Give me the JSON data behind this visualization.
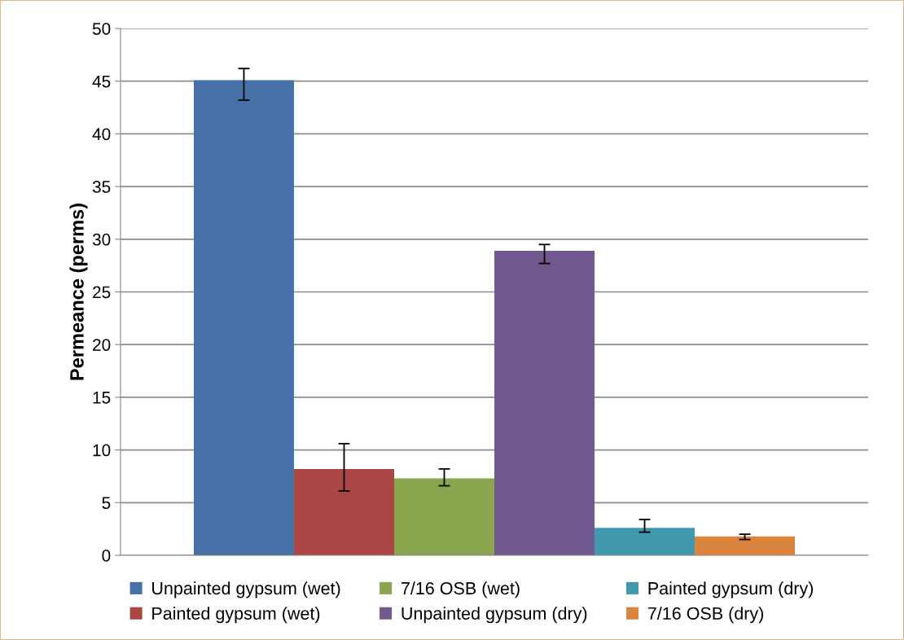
{
  "chart_data": {
    "type": "bar",
    "ylabel": "Permeance (perms)",
    "categories": [
      null
    ],
    "series": [
      {
        "name": "Unpainted gypsum (wet)",
        "color": "#4571a7",
        "values": [
          45.1
        ],
        "errors": [
          [
            43.2,
            46.2
          ]
        ]
      },
      {
        "name": "Painted gypsum (wet)",
        "color": "#aa4644",
        "values": [
          8.2
        ],
        "errors": [
          [
            6.1,
            10.6
          ]
        ]
      },
      {
        "name": "7/16 OSB (wet)",
        "color": "#89a54e",
        "values": [
          7.3
        ],
        "errors": [
          [
            6.6,
            8.2
          ]
        ]
      },
      {
        "name": "Unpainted gypsum (dry)",
        "color": "#71588f",
        "values": [
          28.9
        ],
        "errors": [
          [
            27.7,
            29.5
          ]
        ]
      },
      {
        "name": "Painted gypsum (dry)",
        "color": "#4298af",
        "values": [
          2.6
        ],
        "errors": [
          [
            2.2,
            3.4
          ]
        ]
      },
      {
        "name": "7/16 OSB (dry)",
        "color": "#db843d",
        "values": [
          1.8
        ],
        "errors": [
          [
            1.5,
            2.0
          ]
        ]
      }
    ],
    "ylim": [
      0,
      50
    ],
    "yticks": [
      0,
      5,
      10,
      15,
      20,
      25,
      30,
      35,
      40,
      45,
      50
    ],
    "grid": "y",
    "legend": "bottom"
  }
}
